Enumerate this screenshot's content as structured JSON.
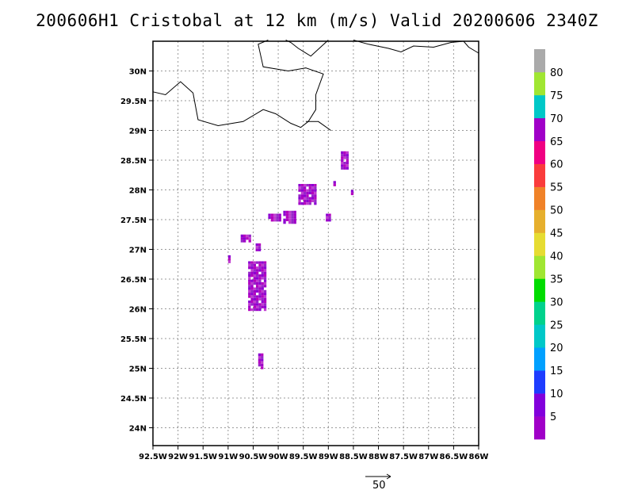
{
  "title": "200606H1 Cristobal at 12 km (m/s) Valid 20200606 2340Z",
  "chart_data": {
    "type": "heatmap",
    "title": "200606H1 Cristobal at 12 km (m/s) Valid 20200606 2340Z",
    "xlabel": "",
    "ylabel": "",
    "units": "m/s",
    "grid": true,
    "legend": "right",
    "x_range_lon": [
      -92.5,
      -86
    ],
    "y_range_lat": [
      23.7,
      30.5
    ],
    "x_ticks": [
      "92.5W",
      "92W",
      "91.5W",
      "91W",
      "90.5W",
      "90W",
      "89.5W",
      "89W",
      "88.5W",
      "88W",
      "87.5W",
      "87W",
      "86.5W",
      "86W"
    ],
    "y_ticks": [
      "24N",
      "24.5N",
      "25N",
      "25.5N",
      "26N",
      "26.5N",
      "27N",
      "27.5N",
      "28N",
      "28.5N",
      "29N",
      "29.5N",
      "30N"
    ],
    "colorbar": {
      "labels": [
        "5",
        "10",
        "15",
        "20",
        "25",
        "30",
        "35",
        "40",
        "45",
        "50",
        "55",
        "60",
        "65",
        "70",
        "75",
        "80"
      ],
      "colors": [
        "#a000c8",
        "#8200dc",
        "#1e3cff",
        "#00a0ff",
        "#00c8c8",
        "#00d28c",
        "#00dc00",
        "#a0e632",
        "#e6dc32",
        "#e6af2d",
        "#f08228",
        "#fa3c3c",
        "#f00082",
        "#a000c8",
        "#00c8c8",
        "#a0e632",
        "#aaaaaa"
      ]
    },
    "reference_vector_label": "50",
    "wind_regions": [
      {
        "lon": [
          -90.6,
          -90.25
        ],
        "lat": [
          26.0,
          26.8
        ],
        "value": 5
      },
      {
        "lon": [
          -90.2,
          -89.95
        ],
        "lat": [
          27.5,
          27.6
        ],
        "value": 5
      },
      {
        "lon": [
          -89.9,
          -89.65
        ],
        "lat": [
          27.45,
          27.65
        ],
        "value": 5
      },
      {
        "lon": [
          -89.6,
          -89.25
        ],
        "lat": [
          27.75,
          28.1
        ],
        "value": 5
      },
      {
        "lon": [
          -89.05,
          -88.95
        ],
        "lat": [
          27.5,
          27.6
        ],
        "value": 5
      },
      {
        "lon": [
          -88.75,
          -88.6
        ],
        "lat": [
          28.35,
          28.65
        ],
        "value": 5
      },
      {
        "lon": [
          -88.55,
          -88.5
        ],
        "lat": [
          27.95,
          28.0
        ],
        "value": 5
      },
      {
        "lon": [
          -88.9,
          -88.85
        ],
        "lat": [
          28.1,
          28.15
        ],
        "value": 5
      },
      {
        "lon": [
          -90.75,
          -90.55
        ],
        "lat": [
          27.15,
          27.25
        ],
        "value": 5
      },
      {
        "lon": [
          -90.45,
          -90.35
        ],
        "lat": [
          27.0,
          27.1
        ],
        "value": 5
      },
      {
        "lon": [
          -91.0,
          -90.95
        ],
        "lat": [
          26.8,
          26.9
        ],
        "value": 5
      },
      {
        "lon": [
          -90.4,
          -90.3
        ],
        "lat": [
          25.0,
          25.25
        ],
        "value": 5
      }
    ],
    "coastline": [
      [
        [
          -92.5,
          29.65
        ],
        [
          -92.25,
          29.6
        ],
        [
          -91.95,
          29.82
        ],
        [
          -91.7,
          29.63
        ],
        [
          -91.6,
          29.18
        ],
        [
          -91.2,
          29.08
        ],
        [
          -90.7,
          29.15
        ],
        [
          -90.3,
          29.35
        ],
        [
          -90.05,
          29.28
        ],
        [
          -89.75,
          29.12
        ],
        [
          -89.55,
          29.05
        ],
        [
          -89.4,
          29.15
        ],
        [
          -89.25,
          29.35
        ],
        [
          -89.25,
          29.6
        ],
        [
          -89.1,
          29.95
        ],
        [
          -89.45,
          30.05
        ],
        [
          -89.8,
          30.0
        ],
        [
          -90.3,
          30.07
        ],
        [
          -90.4,
          30.45
        ],
        [
          -90.2,
          30.52
        ]
      ],
      [
        [
          -88.95,
          29.0
        ],
        [
          -89.2,
          29.15
        ],
        [
          -89.45,
          29.15
        ]
      ],
      [
        [
          -89.0,
          30.52
        ],
        [
          -89.35,
          30.25
        ],
        [
          -89.6,
          30.38
        ],
        [
          -89.75,
          30.48
        ],
        [
          -89.85,
          30.52
        ]
      ],
      [
        [
          -88.5,
          30.52
        ],
        [
          -88.2,
          30.45
        ],
        [
          -87.8,
          30.38
        ],
        [
          -87.55,
          30.32
        ],
        [
          -87.3,
          30.42
        ],
        [
          -86.9,
          30.4
        ],
        [
          -86.55,
          30.48
        ],
        [
          -86.3,
          30.5
        ],
        [
          -86.2,
          30.4
        ],
        [
          -86.0,
          30.3
        ]
      ]
    ]
  }
}
